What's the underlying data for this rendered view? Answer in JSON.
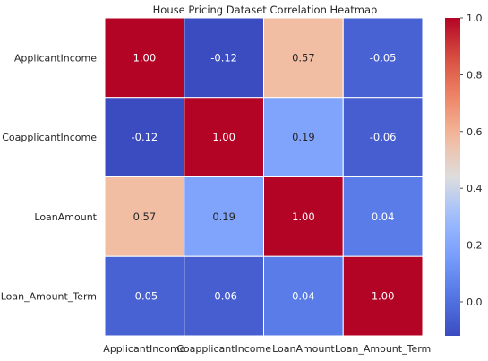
{
  "chart_data": {
    "type": "heatmap",
    "title": "House Pricing Dataset Correlation Heatmap",
    "rows": [
      "ApplicantIncome",
      "CoapplicantIncome",
      "LoanAmount",
      "Loan_Amount_Term"
    ],
    "columns": [
      "ApplicantIncome",
      "CoapplicantIncome",
      "LoanAmount",
      "Loan_Amount_Term"
    ],
    "values": [
      [
        1.0,
        -0.12,
        0.57,
        -0.05
      ],
      [
        -0.12,
        1.0,
        0.19,
        -0.06
      ],
      [
        0.57,
        0.19,
        1.0,
        0.04
      ],
      [
        -0.05,
        -0.06,
        0.04,
        1.0
      ]
    ],
    "annotations_format": "0.00",
    "colormap": "coolwarm",
    "colorbar": {
      "range": [
        -0.12,
        1.0
      ],
      "ticks": [
        0.0,
        0.2,
        0.4,
        0.6,
        0.8,
        1.0
      ],
      "tick_labels": [
        "0.0",
        "0.2",
        "0.4",
        "0.6",
        "0.8",
        "1.0"
      ]
    },
    "grid_lines_color": "#ffffff"
  }
}
